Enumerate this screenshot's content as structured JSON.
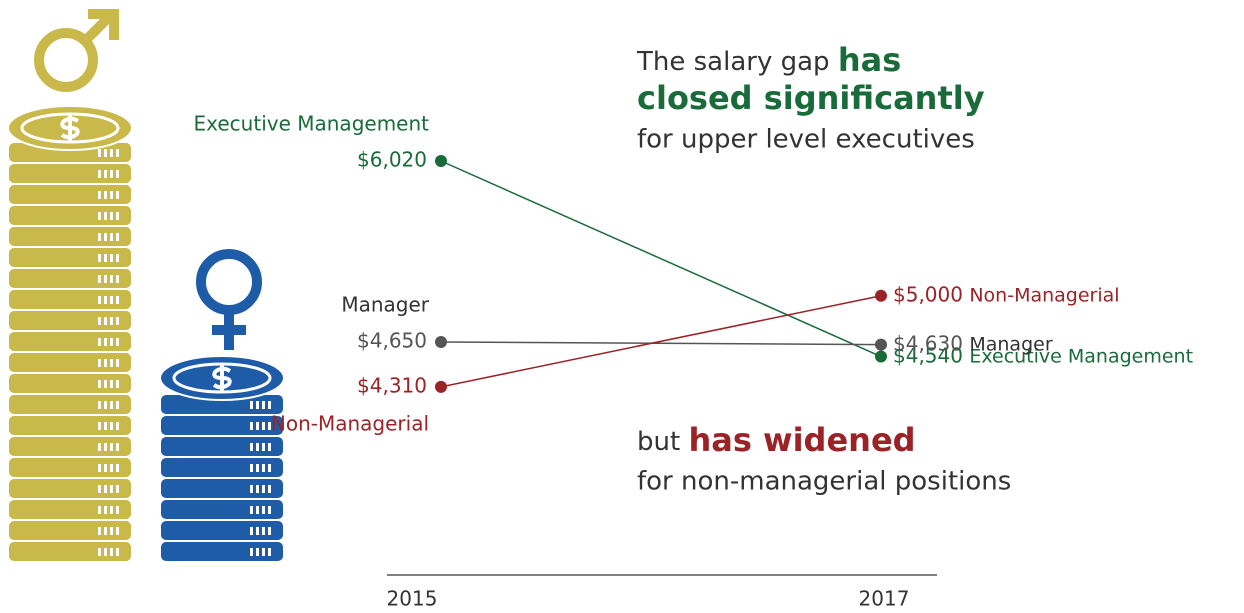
{
  "chart_data": {
    "type": "slope",
    "x": [
      "2015",
      "2017"
    ],
    "series": [
      {
        "name": "Executive Management",
        "color": "#1a6b3a",
        "values": [
          6020,
          4540
        ],
        "value_labels": [
          "$6,020",
          "$4,540"
        ]
      },
      {
        "name": "Manager",
        "color": "#555555",
        "values": [
          4650,
          4630
        ],
        "value_labels": [
          "$4,650",
          "$4,630"
        ]
      },
      {
        "name": "Non-Managerial",
        "color": "#9b2226",
        "values": [
          4310,
          5000
        ],
        "value_labels": [
          "$4,310",
          "$5,000"
        ]
      }
    ],
    "annotations": {
      "top": {
        "lead": "The salary gap",
        "bold": [
          "has",
          "closed significantly"
        ],
        "tail": "for upper level executives"
      },
      "bottom": {
        "lead": "but",
        "bold": "has widened",
        "tail": "for non-managerial positions"
      }
    }
  }
}
